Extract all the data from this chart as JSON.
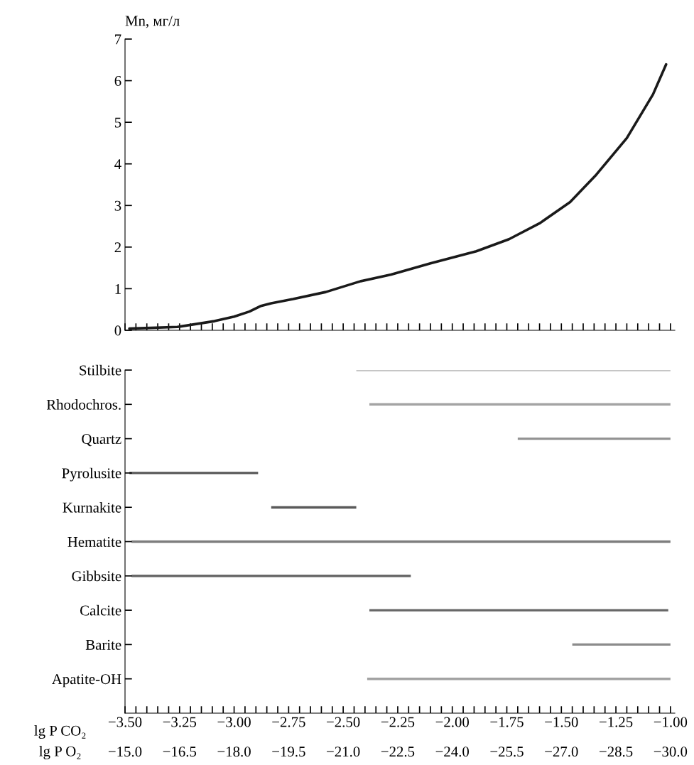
{
  "chart_data": [
    {
      "type": "line",
      "ylabel": "Mn, мг/л",
      "xlim": [
        -3.5,
        -0.98
      ],
      "ylim": [
        0,
        7
      ],
      "yticks": [
        0,
        1,
        2,
        3,
        4,
        5,
        6,
        7
      ],
      "xticks": [
        {
          "value": -3.5,
          "label": null
        },
        {
          "value": -3.45,
          "label": null
        },
        {
          "value": -3.4,
          "label": null
        },
        {
          "value": -3.35,
          "label": null
        },
        {
          "value": -3.3,
          "label": null
        },
        {
          "value": -3.25,
          "label": null
        },
        {
          "value": -3.2,
          "label": null
        },
        {
          "value": -3.15,
          "label": null
        },
        {
          "value": -3.1,
          "label": null
        },
        {
          "value": -3.05,
          "label": null
        },
        {
          "value": -3.0,
          "label": null
        },
        {
          "value": -2.95,
          "label": null
        },
        {
          "value": -2.9,
          "label": null
        },
        {
          "value": -2.85,
          "label": null
        },
        {
          "value": -2.8,
          "label": null
        },
        {
          "value": -2.75,
          "label": null
        },
        {
          "value": -2.7,
          "label": null
        },
        {
          "value": -2.65,
          "label": null
        },
        {
          "value": -2.6,
          "label": null
        },
        {
          "value": -2.55,
          "label": null
        },
        {
          "value": -2.5,
          "label": null
        },
        {
          "value": -2.45,
          "label": null
        },
        {
          "value": -2.4,
          "label": null
        },
        {
          "value": -2.35,
          "label": null
        },
        {
          "value": -2.3,
          "label": null
        },
        {
          "value": -2.25,
          "label": null
        },
        {
          "value": -2.2,
          "label": null
        },
        {
          "value": -2.15,
          "label": null
        },
        {
          "value": -2.1,
          "label": null
        },
        {
          "value": -2.05,
          "label": null
        },
        {
          "value": -2.0,
          "label": null
        },
        {
          "value": -1.95,
          "label": null
        },
        {
          "value": -1.9,
          "label": null
        },
        {
          "value": -1.85,
          "label": null
        },
        {
          "value": -1.8,
          "label": null
        },
        {
          "value": -1.75,
          "label": null
        },
        {
          "value": -1.7,
          "label": null
        },
        {
          "value": -1.65,
          "label": null
        },
        {
          "value": -1.6,
          "label": null
        },
        {
          "value": -1.55,
          "label": null
        },
        {
          "value": -1.5,
          "label": null
        },
        {
          "value": -1.45,
          "label": null
        },
        {
          "value": -1.4,
          "label": null
        },
        {
          "value": -1.35,
          "label": null
        },
        {
          "value": -1.3,
          "label": null
        },
        {
          "value": -1.25,
          "label": null
        },
        {
          "value": -1.2,
          "label": null
        },
        {
          "value": -1.15,
          "label": null
        },
        {
          "value": -1.1,
          "label": null
        },
        {
          "value": -1.05,
          "label": null
        },
        {
          "value": -1.0,
          "label": null
        }
      ],
      "tick_labels": "y",
      "grid": false,
      "legend": false,
      "series": [
        {
          "color": "#1a1a1a",
          "x": [
            -3.48,
            -3.26,
            -3.09,
            -3.0,
            -2.93,
            -2.88,
            -2.83,
            -2.73,
            -2.58,
            -2.42,
            -2.28,
            -2.1,
            -1.89,
            -1.74,
            -1.6,
            -1.46,
            -1.34,
            -1.2,
            -1.08,
            -1.02
          ],
          "values": [
            0.04,
            0.08,
            0.22,
            0.33,
            0.45,
            0.58,
            0.65,
            0.75,
            0.92,
            1.18,
            1.34,
            1.61,
            1.9,
            2.19,
            2.57,
            3.08,
            3.74,
            4.62,
            5.67,
            6.39
          ]
        }
      ]
    },
    {
      "type": "bar",
      "orientation": "horizontal",
      "xlabel": "lg P CO₂",
      "x2label": "lg P O₂",
      "tick_labels": "x",
      "grid": false,
      "legend": false,
      "categories": [
        "Stilbite",
        "Rhodochros.",
        "Quartz",
        "Pyrolusite",
        "Kurnakite",
        "Hematite",
        "Gibbsite",
        "Calcite",
        "Barite",
        "Apatite-OH"
      ],
      "base": [
        -2.44,
        -2.38,
        -1.7,
        -3.48,
        -2.83,
        -3.47,
        -3.47,
        -2.38,
        -1.45,
        -2.39
      ],
      "values": [
        1.44,
        1.38,
        0.7,
        0.59,
        0.39,
        2.47,
        1.28,
        1.37,
        0.45,
        1.39
      ],
      "colors": [
        "#c4c4c4",
        "#a4a4a4",
        "#939393",
        "#585858",
        "#5a5a5a",
        "#7e7e7e",
        "#686868",
        "#686868",
        "#8c8c8c",
        "#a2a2a2"
      ],
      "xlim": [
        -3.5,
        -0.98
      ],
      "xticks": [
        {
          "value": -3.5,
          "label": "−3.50"
        },
        {
          "value": -3.45,
          "label": null
        },
        {
          "value": -3.4,
          "label": null
        },
        {
          "value": -3.35,
          "label": null
        },
        {
          "value": -3.3,
          "label": null
        },
        {
          "value": -3.25,
          "label": "−3.25"
        },
        {
          "value": -3.2,
          "label": null
        },
        {
          "value": -3.15,
          "label": null
        },
        {
          "value": -3.1,
          "label": null
        },
        {
          "value": -3.05,
          "label": null
        },
        {
          "value": -3.0,
          "label": "−3.00"
        },
        {
          "value": -2.95,
          "label": null
        },
        {
          "value": -2.9,
          "label": null
        },
        {
          "value": -2.85,
          "label": null
        },
        {
          "value": -2.8,
          "label": null
        },
        {
          "value": -2.75,
          "label": "−2.75"
        },
        {
          "value": -2.7,
          "label": null
        },
        {
          "value": -2.65,
          "label": null
        },
        {
          "value": -2.6,
          "label": null
        },
        {
          "value": -2.55,
          "label": null
        },
        {
          "value": -2.5,
          "label": "−2.50"
        },
        {
          "value": -2.45,
          "label": null
        },
        {
          "value": -2.4,
          "label": null
        },
        {
          "value": -2.35,
          "label": null
        },
        {
          "value": -2.3,
          "label": null
        },
        {
          "value": -2.25,
          "label": "−2.25"
        },
        {
          "value": -2.2,
          "label": null
        },
        {
          "value": -2.15,
          "label": null
        },
        {
          "value": -2.1,
          "label": null
        },
        {
          "value": -2.05,
          "label": null
        },
        {
          "value": -2.0,
          "label": "−2.00"
        },
        {
          "value": -1.95,
          "label": null
        },
        {
          "value": -1.9,
          "label": null
        },
        {
          "value": -1.85,
          "label": null
        },
        {
          "value": -1.8,
          "label": null
        },
        {
          "value": -1.75,
          "label": "−1.75"
        },
        {
          "value": -1.7,
          "label": null
        },
        {
          "value": -1.65,
          "label": null
        },
        {
          "value": -1.6,
          "label": null
        },
        {
          "value": -1.55,
          "label": null
        },
        {
          "value": -1.5,
          "label": "−1.50"
        },
        {
          "value": -1.45,
          "label": null
        },
        {
          "value": -1.4,
          "label": null
        },
        {
          "value": -1.35,
          "label": null
        },
        {
          "value": -1.3,
          "label": null
        },
        {
          "value": -1.25,
          "label": "−1.25"
        },
        {
          "value": -1.2,
          "label": null
        },
        {
          "value": -1.15,
          "label": null
        },
        {
          "value": -1.1,
          "label": null
        },
        {
          "value": -1.05,
          "label": null
        },
        {
          "value": -1.0,
          "label": "−1.00"
        }
      ],
      "x2lim": [
        -15.0,
        -30.12
      ],
      "x2ticks": [
        {
          "value": -15.0,
          "label": "−15.0"
        },
        {
          "value": -16.5,
          "label": "−16.5"
        },
        {
          "value": -18.0,
          "label": "−18.0"
        },
        {
          "value": -19.5,
          "label": "−19.5"
        },
        {
          "value": -21.0,
          "label": "−21.0"
        },
        {
          "value": -22.5,
          "label": "−22.5"
        },
        {
          "value": -24.0,
          "label": "−24.0"
        },
        {
          "value": -25.5,
          "label": "−25.5"
        },
        {
          "value": -27.0,
          "label": "−27.0"
        },
        {
          "value": -28.5,
          "label": "−28.5"
        },
        {
          "value": -30.0,
          "label": "−30.0"
        }
      ]
    }
  ]
}
